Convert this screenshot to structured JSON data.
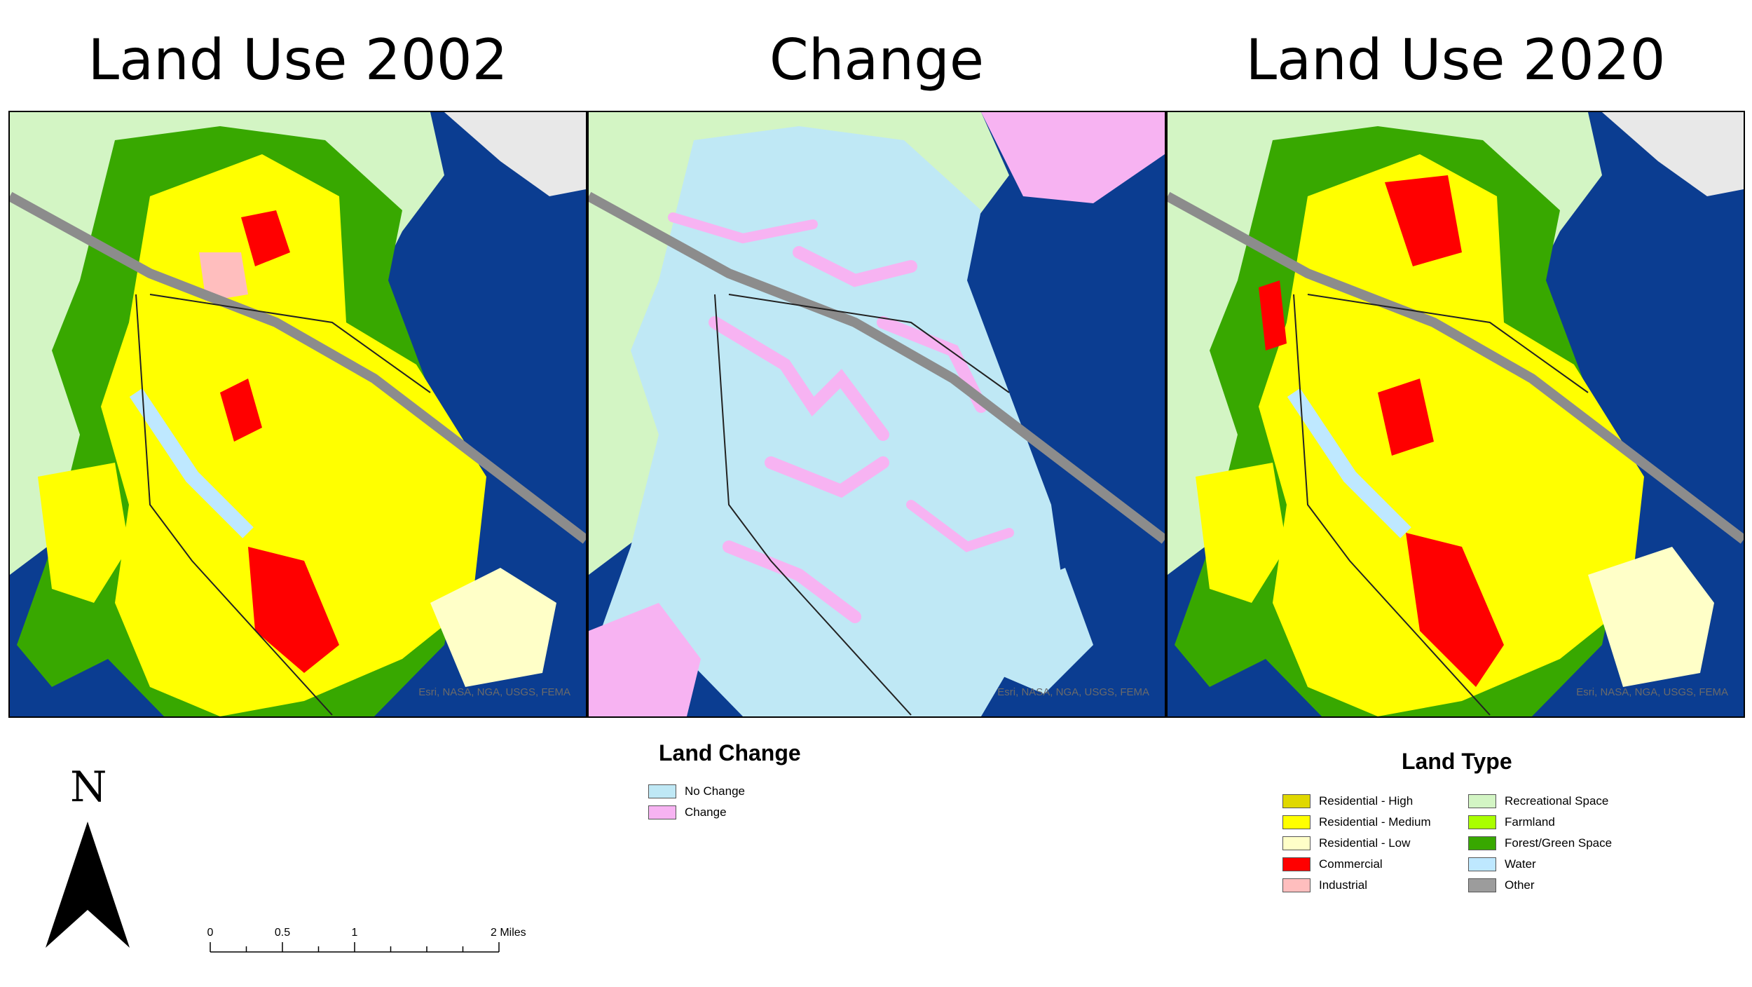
{
  "titles": {
    "left": "Land Use 2002",
    "center": "Change",
    "right": "Land Use 2020"
  },
  "attribution": "Esri, NASA, NGA, USGS, FEMA",
  "land_change_legend": {
    "title": "Land Change",
    "items": [
      {
        "label": "No Change",
        "color": "#bfe8f5"
      },
      {
        "label": "Change",
        "color": "#f7b3f2"
      }
    ]
  },
  "land_type_legend": {
    "title": "Land Type",
    "items": [
      {
        "label": "Residential - High",
        "color": "#e0d800"
      },
      {
        "label": "Residential - Medium",
        "color": "#ffff00"
      },
      {
        "label": "Residential - Low",
        "color": "#ffffc8"
      },
      {
        "label": "Commercial",
        "color": "#ff0000"
      },
      {
        "label": "Industrial",
        "color": "#ffbebe"
      },
      {
        "label": "Recreational Space",
        "color": "#d3f5c4"
      },
      {
        "label": "Farmland",
        "color": "#aaff00"
      },
      {
        "label": "Forest/Green Space",
        "color": "#38a800"
      },
      {
        "label": "Water",
        "color": "#bee8ff"
      },
      {
        "label": "Other",
        "color": "#9c9c9c"
      }
    ]
  },
  "north_arrow": {
    "letter": "N"
  },
  "scale_bar": {
    "ticks": [
      {
        "label": "0",
        "miles": 0
      },
      {
        "label": "0.5",
        "miles": 0.5
      },
      {
        "label": "1",
        "miles": 1
      },
      {
        "label": "2 Miles",
        "miles": 2
      }
    ]
  },
  "map_colors": {
    "outside": "#0b3d91",
    "recreational": "#d3f5c4",
    "residential_medium": "#ffff00",
    "forest": "#38a800",
    "commercial": "#ff0000",
    "no_change": "#bfe8f5",
    "change": "#f7b3f2",
    "highway": "#8c8c8c"
  }
}
